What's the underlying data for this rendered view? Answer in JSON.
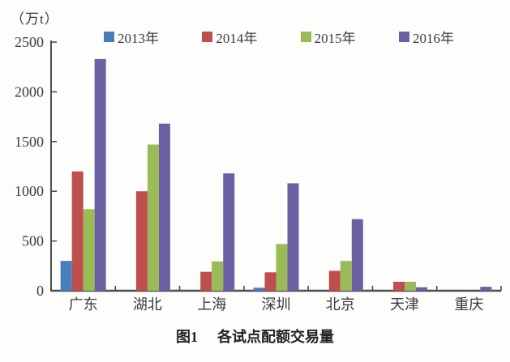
{
  "chart_data": {
    "type": "bar",
    "title": "图1 各试点配额交易量",
    "unit_label": "（万t）",
    "caption": {
      "label": "图1",
      "title": "各试点配额交易量"
    },
    "categories": [
      "广东",
      "湖北",
      "上海",
      "深圳",
      "北京",
      "天津",
      "重庆"
    ],
    "series": [
      {
        "name": "2013年",
        "color": "#4a7ebb",
        "values": [
          300,
          0,
          0,
          30,
          0,
          0,
          0
        ]
      },
      {
        "name": "2014年",
        "color": "#bf4e4e",
        "values": [
          1200,
          1000,
          190,
          185,
          200,
          90,
          0
        ]
      },
      {
        "name": "2015年",
        "color": "#9bbb59",
        "values": [
          820,
          1470,
          295,
          470,
          300,
          90,
          0
        ]
      },
      {
        "name": "2016年",
        "color": "#6c60a3",
        "values": [
          2330,
          1680,
          1180,
          1080,
          720,
          35,
          40
        ]
      }
    ],
    "xlabel": "",
    "ylabel": "万t",
    "ylim": [
      0,
      2500
    ],
    "yticks": [
      0,
      500,
      1000,
      1500,
      2000,
      2500
    ],
    "grid": false,
    "legend_position": "top",
    "axis_color": "#4d4d52",
    "text_color": "#3a3a3e"
  }
}
